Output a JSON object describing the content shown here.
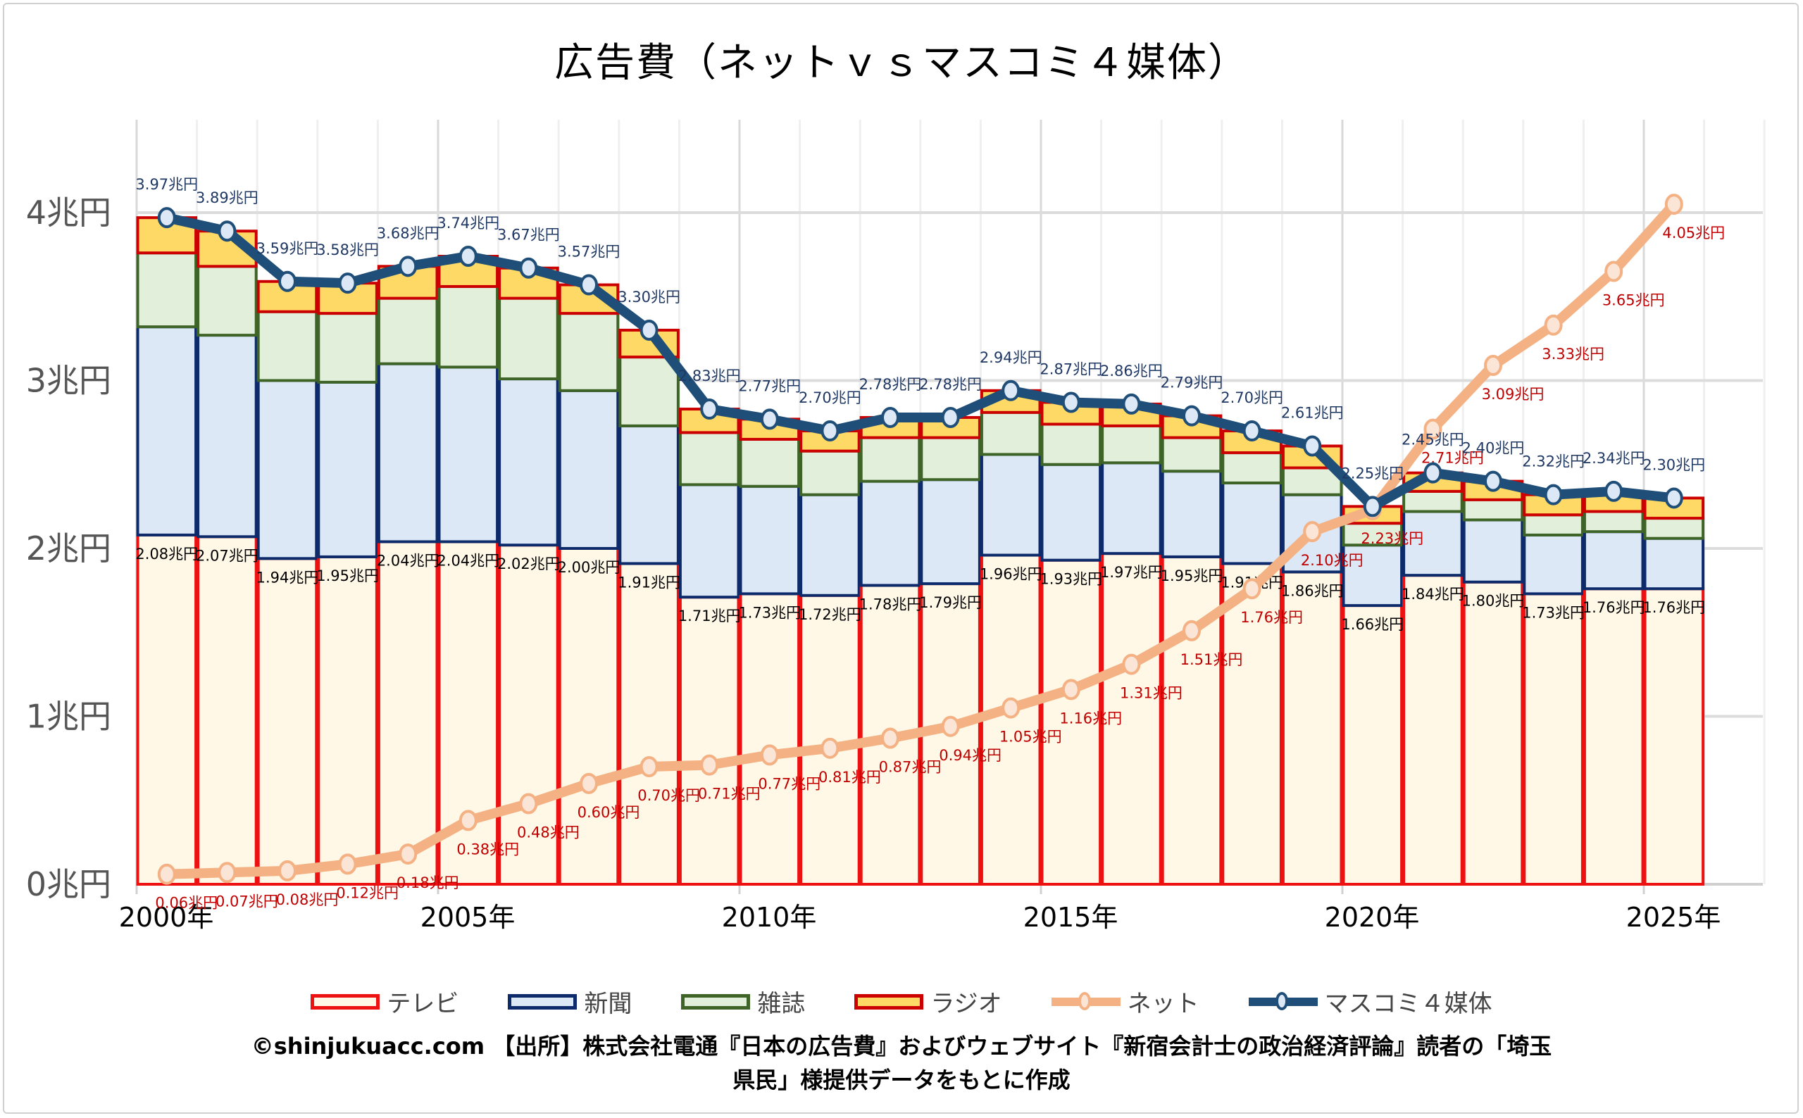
{
  "chart_data": {
    "type": "bar",
    "subtype": "stacked-bar-with-lines",
    "title": "広告費（ネットｖｓマスコミ４媒体）",
    "xlabel": "",
    "ylabel": "",
    "ylim": [
      0,
      4.5
    ],
    "yticks": [
      0,
      1,
      2,
      3,
      4
    ],
    "ytick_labels": [
      "0兆円",
      "1兆円",
      "2兆円",
      "3兆円",
      "4兆円"
    ],
    "xtick_labels": [
      "2000年",
      "2005年",
      "2010年",
      "2015年",
      "2020年",
      "2025年"
    ],
    "xtick_years": [
      2000,
      2005,
      2010,
      2015,
      2020,
      2025
    ],
    "grid": true,
    "legend_position": "bottom",
    "unit_suffix": "兆円",
    "categories": [
      2000,
      2001,
      2002,
      2003,
      2004,
      2005,
      2006,
      2007,
      2008,
      2009,
      2010,
      2011,
      2012,
      2013,
      2014,
      2015,
      2016,
      2017,
      2018,
      2019,
      2020,
      2021,
      2022,
      2023,
      2024,
      2025
    ],
    "series": [
      {
        "name": "テレビ",
        "kind": "stacked-bar",
        "fill": "#fff8e6",
        "stroke": "#ee1111",
        "values": [
          2.08,
          2.07,
          1.94,
          1.95,
          2.04,
          2.04,
          2.02,
          2.0,
          1.91,
          1.71,
          1.73,
          1.72,
          1.78,
          1.79,
          1.96,
          1.93,
          1.97,
          1.95,
          1.91,
          1.86,
          1.66,
          1.84,
          1.8,
          1.73,
          1.76,
          1.76
        ],
        "labels_shown": true,
        "label_color": "#000000"
      },
      {
        "name": "新聞",
        "kind": "stacked-bar",
        "fill": "#dce8f5",
        "stroke": "#0d2a6b",
        "values": [
          1.24,
          1.2,
          1.06,
          1.04,
          1.06,
          1.04,
          0.99,
          0.94,
          0.82,
          0.67,
          0.64,
          0.6,
          0.62,
          0.62,
          0.6,
          0.57,
          0.54,
          0.51,
          0.48,
          0.46,
          0.36,
          0.38,
          0.37,
          0.35,
          0.34,
          0.3
        ],
        "labels_shown": false
      },
      {
        "name": "雑誌",
        "kind": "stacked-bar",
        "fill": "#e2efda",
        "stroke": "#3f6428",
        "values": [
          0.44,
          0.41,
          0.41,
          0.41,
          0.39,
          0.48,
          0.48,
          0.46,
          0.41,
          0.31,
          0.28,
          0.26,
          0.26,
          0.25,
          0.25,
          0.24,
          0.22,
          0.2,
          0.18,
          0.16,
          0.13,
          0.12,
          0.12,
          0.12,
          0.12,
          0.12
        ],
        "labels_shown": false
      },
      {
        "name": "ラジオ",
        "kind": "stacked-bar",
        "fill": "#ffd966",
        "stroke": "#cc0000",
        "values": [
          0.21,
          0.21,
          0.18,
          0.18,
          0.19,
          0.18,
          0.18,
          0.17,
          0.16,
          0.14,
          0.12,
          0.12,
          0.12,
          0.12,
          0.13,
          0.13,
          0.13,
          0.13,
          0.13,
          0.13,
          0.1,
          0.11,
          0.11,
          0.12,
          0.12,
          0.12
        ],
        "labels_shown": false
      },
      {
        "name": "ネット",
        "kind": "line",
        "stroke": "#f4b183",
        "marker_fill": "#fbe5d6",
        "values": [
          0.06,
          0.07,
          0.08,
          0.12,
          0.18,
          0.38,
          0.48,
          0.6,
          0.7,
          0.71,
          0.77,
          0.81,
          0.87,
          0.94,
          1.05,
          1.16,
          1.31,
          1.51,
          1.76,
          2.1,
          2.23,
          2.71,
          3.09,
          3.33,
          3.65,
          4.05
        ],
        "labels_shown": true,
        "label_color": "#c00000"
      },
      {
        "name": "マスコミ４媒体",
        "kind": "line",
        "stroke": "#1f4e79",
        "marker_fill": "#dce8f5",
        "values": [
          3.97,
          3.89,
          3.59,
          3.58,
          3.68,
          3.74,
          3.67,
          3.57,
          3.3,
          2.83,
          2.77,
          2.7,
          2.78,
          2.78,
          2.94,
          2.87,
          2.86,
          2.79,
          2.7,
          2.61,
          2.25,
          2.45,
          2.4,
          2.32,
          2.34,
          2.3
        ],
        "labels_shown": true,
        "label_color": "#1f3864"
      }
    ]
  },
  "legend": {
    "items": [
      {
        "label": "テレビ",
        "type": "box",
        "fill": "#fff8e6",
        "stroke": "#ee1111"
      },
      {
        "label": "新聞",
        "type": "box",
        "fill": "#dce8f5",
        "stroke": "#0d2a6b"
      },
      {
        "label": "雑誌",
        "type": "box",
        "fill": "#e2efda",
        "stroke": "#3f6428"
      },
      {
        "label": "ラジオ",
        "type": "box",
        "fill": "#ffd966",
        "stroke": "#cc0000"
      },
      {
        "label": "ネット",
        "type": "line",
        "fill": "#fbe5d6",
        "stroke": "#f4b183"
      },
      {
        "label": "マスコミ４媒体",
        "type": "line",
        "fill": "#dce8f5",
        "stroke": "#1f4e79"
      }
    ]
  },
  "footer": {
    "line1": "©shinjukuacc.com 【出所】株式会社電通『日本の広告費』およびウェブサイト『新宿会計士の政治経済評論』読者の「埼玉",
    "line2": "県民」様提供データをもとに作成"
  }
}
